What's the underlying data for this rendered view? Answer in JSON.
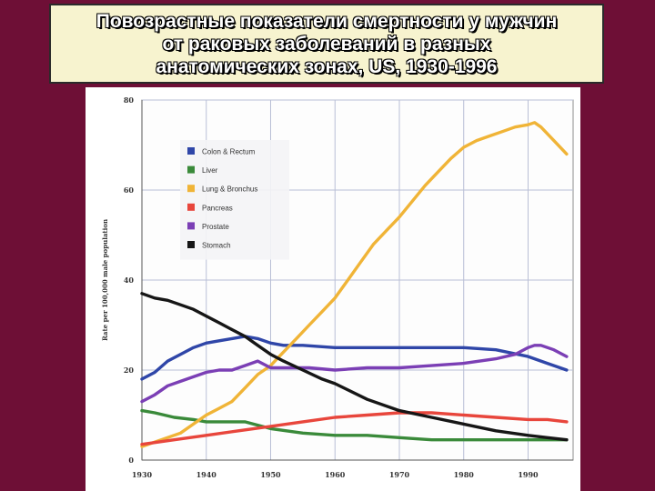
{
  "title": {
    "lines": [
      "Повозрастные показатели смертности у мужчин",
      "от раковых заболеваний в разных",
      "анатомических зонах, US, 1930-1996"
    ]
  },
  "chart_data": {
    "type": "line",
    "title": "Повозрастные показатели смертности у мужчин от раковых заболеваний в разных анатомических зонах, US, 1930-1996",
    "xlabel": "",
    "ylabel": "Rate per 100,000 male population",
    "xlim": [
      1930,
      1997
    ],
    "ylim": [
      0,
      80
    ],
    "x_ticks": [
      "1930",
      "1940",
      "1950",
      "1960",
      "1970",
      "1980",
      "1990"
    ],
    "y_ticks": [
      "0",
      "20",
      "40",
      "60",
      "80"
    ],
    "grid": true,
    "legend_position": "top-left",
    "series": [
      {
        "name": "Colon & Rectum",
        "color": "#2f46a8",
        "x": [
          1930,
          1932,
          1934,
          1936,
          1938,
          1940,
          1942,
          1944,
          1946,
          1948,
          1950,
          1952,
          1955,
          1960,
          1965,
          1970,
          1975,
          1980,
          1985,
          1990,
          1993,
          1996
        ],
        "y": [
          18,
          19.5,
          22,
          23.5,
          25,
          26,
          26.5,
          27,
          27.5,
          27,
          26,
          25.5,
          25.5,
          25,
          25,
          25,
          25,
          25,
          24.5,
          23,
          21.5,
          20
        ]
      },
      {
        "name": "Liver",
        "color": "#3a8a3a",
        "x": [
          1930,
          1932,
          1935,
          1938,
          1940,
          1943,
          1946,
          1950,
          1955,
          1960,
          1965,
          1970,
          1975,
          1980,
          1985,
          1990,
          1993,
          1996
        ],
        "y": [
          11,
          10.5,
          9.5,
          9,
          8.5,
          8.5,
          8.5,
          7,
          6,
          5.5,
          5.5,
          5,
          4.5,
          4.5,
          4.5,
          4.5,
          4.5,
          4.5
        ]
      },
      {
        "name": "Lung & Bronchus",
        "color": "#f0b437",
        "x": [
          1930,
          1933,
          1936,
          1938,
          1940,
          1942,
          1944,
          1946,
          1948,
          1950,
          1952,
          1954,
          1956,
          1958,
          1960,
          1962,
          1964,
          1966,
          1968,
          1970,
          1972,
          1974,
          1976,
          1978,
          1980,
          1982,
          1984,
          1986,
          1988,
          1990,
          1991,
          1992,
          1994,
          1996
        ],
        "y": [
          3,
          4.5,
          6,
          8,
          10,
          11.5,
          13,
          16,
          19,
          21,
          24,
          27,
          30,
          33,
          36,
          40,
          44,
          48,
          51,
          54,
          57.5,
          61,
          64,
          67,
          69.5,
          71,
          72,
          73,
          74,
          74.5,
          75,
          74,
          71,
          68
        ]
      },
      {
        "name": "Pancreas",
        "color": "#e8463c",
        "x": [
          1930,
          1935,
          1940,
          1945,
          1950,
          1955,
          1960,
          1965,
          1970,
          1975,
          1980,
          1985,
          1990,
          1993,
          1996
        ],
        "y": [
          3.5,
          4.5,
          5.5,
          6.5,
          7.5,
          8.5,
          9.5,
          10,
          10.5,
          10.5,
          10,
          9.5,
          9,
          9,
          8.5
        ]
      },
      {
        "name": "Prostate",
        "color": "#7b3fb5",
        "x": [
          1930,
          1932,
          1934,
          1936,
          1938,
          1940,
          1942,
          1944,
          1946,
          1948,
          1950,
          1953,
          1956,
          1960,
          1965,
          1970,
          1975,
          1980,
          1985,
          1988,
          1990,
          1991,
          1992,
          1994,
          1996
        ],
        "y": [
          13,
          14.5,
          16.5,
          17.5,
          18.5,
          19.5,
          20,
          20,
          21,
          22,
          20.5,
          20.5,
          20.5,
          20,
          20.5,
          20.5,
          21,
          21.5,
          22.5,
          23.5,
          25,
          25.5,
          25.5,
          24.5,
          23
        ]
      },
      {
        "name": "Stomach",
        "color": "#161616",
        "x": [
          1930,
          1932,
          1934,
          1936,
          1938,
          1940,
          1942,
          1944,
          1946,
          1948,
          1950,
          1952,
          1955,
          1958,
          1960,
          1965,
          1970,
          1975,
          1980,
          1985,
          1990,
          1993,
          1996
        ],
        "y": [
          37,
          36,
          35.5,
          34.5,
          33.5,
          32,
          30.5,
          29,
          27.5,
          25.5,
          23.5,
          22,
          20,
          18,
          17,
          13.5,
          11,
          9.5,
          8,
          6.5,
          5.5,
          5,
          4.5
        ]
      }
    ]
  }
}
